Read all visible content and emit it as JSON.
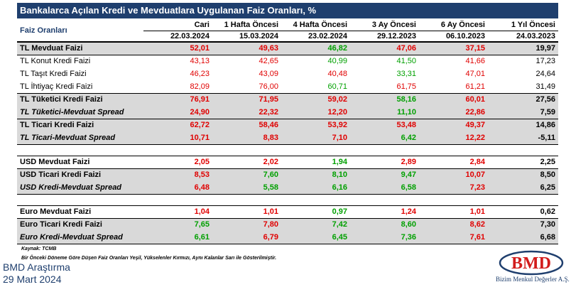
{
  "title": "Bankalarca Açılan Kredi ve Mevduatlara Uygulanan Faiz Oranları, %",
  "header": {
    "label": "Faiz Oranları",
    "columns": [
      {
        "name": "Cari",
        "date": "22.03.2024"
      },
      {
        "name": "1 Hafta Öncesi",
        "date": "15.03.2024"
      },
      {
        "name": "4 Hafta Öncesi",
        "date": "23.02.2024"
      },
      {
        "name": "3 Ay Öncesi",
        "date": "29.12.2023"
      },
      {
        "name": "6 Ay Öncesi",
        "date": "06.10.2023"
      },
      {
        "name": "1 Yıl Öncesi",
        "date": "24.03.2023"
      }
    ]
  },
  "rows": [
    {
      "label": "TL Mevduat Faizi",
      "values": [
        "52,01",
        "49,63",
        "46,82",
        "47,06",
        "37,15",
        "19,97"
      ],
      "colors": [
        "red",
        "red",
        "green",
        "red",
        "red",
        "black"
      ]
    },
    {
      "label": "TL Konut Kredi Faizi",
      "values": [
        "43,13",
        "42,65",
        "40,99",
        "41,50",
        "41,66",
        "17,23"
      ],
      "colors": [
        "red",
        "red",
        "green",
        "green",
        "red",
        "black"
      ]
    },
    {
      "label": "TL Taşıt Kredi Faizi",
      "values": [
        "46,23",
        "43,09",
        "40,48",
        "33,31",
        "47,01",
        "24,64"
      ],
      "colors": [
        "red",
        "red",
        "red",
        "green",
        "red",
        "black"
      ]
    },
    {
      "label": "TL İhtiyaç Kredi Faizi",
      "values": [
        "82,09",
        "76,00",
        "60,71",
        "61,75",
        "61,21",
        "31,49"
      ],
      "colors": [
        "red",
        "red",
        "green",
        "red",
        "red",
        "black"
      ]
    },
    {
      "label": "TL Tüketici Kredi Faizi",
      "values": [
        "76,91",
        "71,95",
        "59,02",
        "58,16",
        "60,01",
        "27,56"
      ],
      "colors": [
        "red",
        "red",
        "red",
        "green",
        "red",
        "black"
      ]
    },
    {
      "label": "TL Tüketici-Mevduat Spread",
      "values": [
        "24,90",
        "22,32",
        "12,20",
        "11,10",
        "22,86",
        "7,59"
      ],
      "colors": [
        "red",
        "red",
        "red",
        "green",
        "red",
        "black"
      ]
    },
    {
      "label": "TL Ticari Kredi Faizi",
      "values": [
        "62,72",
        "58,46",
        "53,92",
        "53,48",
        "49,37",
        "14,86"
      ],
      "colors": [
        "red",
        "red",
        "red",
        "red",
        "red",
        "black"
      ]
    },
    {
      "label": "TL Ticari-Mevduat Spread",
      "values": [
        "10,71",
        "8,83",
        "7,10",
        "6,42",
        "12,22",
        "-5,11"
      ],
      "colors": [
        "red",
        "red",
        "red",
        "green",
        "red",
        "black"
      ]
    },
    {
      "label": "USD Mevduat Faizi",
      "values": [
        "2,05",
        "2,02",
        "1,94",
        "2,89",
        "2,84",
        "2,25"
      ],
      "colors": [
        "red",
        "red",
        "green",
        "red",
        "red",
        "black"
      ]
    },
    {
      "label": "USD Ticari Kredi Faizi",
      "values": [
        "8,53",
        "7,60",
        "8,10",
        "9,47",
        "10,07",
        "8,50"
      ],
      "colors": [
        "red",
        "green",
        "green",
        "green",
        "red",
        "black"
      ]
    },
    {
      "label": "USD Kredi-Mevduat Spread",
      "values": [
        "6,48",
        "5,58",
        "6,16",
        "6,58",
        "7,23",
        "6,25"
      ],
      "colors": [
        "red",
        "green",
        "green",
        "green",
        "red",
        "black"
      ]
    },
    {
      "label": "Euro Mevduat Faizi",
      "values": [
        "1,04",
        "1,01",
        "0,97",
        "1,24",
        "1,01",
        "0,62"
      ],
      "colors": [
        "red",
        "red",
        "green",
        "red",
        "red",
        "black"
      ]
    },
    {
      "label": "Euro Ticari Kredi Faizi",
      "values": [
        "7,65",
        "7,80",
        "7,42",
        "8,60",
        "8,62",
        "7,30"
      ],
      "colors": [
        "green",
        "red",
        "green",
        "green",
        "red",
        "black"
      ]
    },
    {
      "label": "Euro Kredi-Mevduat Spread",
      "values": [
        "6,61",
        "6,79",
        "6,45",
        "7,36",
        "7,61",
        "6,68"
      ],
      "colors": [
        "green",
        "red",
        "green",
        "green",
        "red",
        "black"
      ]
    }
  ],
  "footer": {
    "source": "Kaynak: TCMB",
    "legend": "Bir Önceki Döneme Göre Düşen Faiz Oranları Yeşil, Yükselenler Kırmızı, Aynı Kalanlar Sarı ile Gösterilmiştir.",
    "org": "BMD Araştırma",
    "date": "29 Mart 2024"
  },
  "logo": {
    "mark": "BMD",
    "company": "Bizim Menkul Değerler A.Ş."
  },
  "colors": {
    "title_bg": "#1f3f6e",
    "increase": "#e00000",
    "decrease": "#00a000",
    "shade": "#d9d9d9"
  }
}
